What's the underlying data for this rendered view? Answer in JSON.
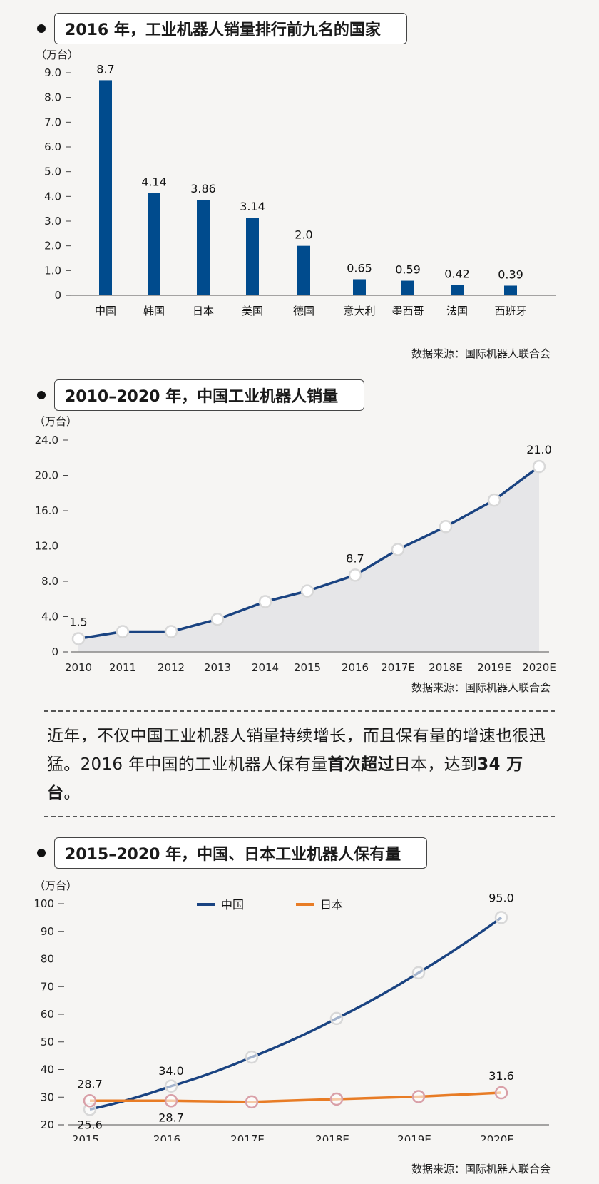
{
  "colors": {
    "bar": "#004b8d",
    "china": "#1a4381",
    "japan": "#e87c25",
    "area": "#e6e6e8",
    "marker": "#d8d8d8",
    "marker_japan": "#d9a0a8"
  },
  "chart_data": [
    {
      "type": "bar",
      "title": "2016 年，工业机器人销量排行前九名的国家",
      "ylabel": "（万台）",
      "ylim": [
        0,
        9.0
      ],
      "yticks": [
        "0",
        "1.0",
        "2.0",
        "3.0",
        "4.0",
        "5.0",
        "6.0",
        "7.0",
        "8.0",
        "9.0"
      ],
      "categories": [
        "中国",
        "韩国",
        "日本",
        "美国",
        "德国",
        "意大利",
        "墨西哥",
        "法国",
        "西班牙"
      ],
      "values": [
        8.7,
        4.14,
        3.86,
        3.14,
        2.0,
        0.65,
        0.59,
        0.42,
        0.39
      ],
      "value_labels": [
        "8.7",
        "4.14",
        "3.86",
        "3.14",
        "2.0",
        "0.65",
        "0.59",
        "0.42",
        "0.39"
      ],
      "source": "数据来源：国际机器人联合会"
    },
    {
      "type": "area",
      "title": "2010–2020 年，中国工业机器人销量",
      "ylabel": "（万台）",
      "ylim": [
        0,
        24.0
      ],
      "yticks": [
        "0",
        "4.0",
        "8.0",
        "12.0",
        "16.0",
        "20.0",
        "24.0"
      ],
      "categories": [
        "2010",
        "2011",
        "2012",
        "2013",
        "2014",
        "2015",
        "2016",
        "2017E",
        "2018E",
        "2019E",
        "2020E"
      ],
      "values": [
        1.5,
        2.3,
        2.3,
        3.7,
        5.7,
        6.9,
        8.7,
        11.6,
        14.2,
        17.2,
        21.0
      ],
      "annotations": [
        {
          "index": 0,
          "label": "1.5"
        },
        {
          "index": 6,
          "label": "8.7"
        },
        {
          "index": 10,
          "label": "21.0"
        }
      ],
      "source": "数据来源：国际机器人联合会"
    },
    {
      "type": "line",
      "title": "2015–2020 年，中国、日本工业机器人保有量",
      "ylabel": "（万台）",
      "ylim": [
        20,
        100
      ],
      "yticks": [
        "20",
        "30",
        "40",
        "50",
        "60",
        "70",
        "80",
        "90",
        "100"
      ],
      "categories": [
        "2015",
        "2016",
        "2017E",
        "2018E",
        "2019E",
        "2020E"
      ],
      "series": [
        {
          "name": "中国",
          "values": [
            25.6,
            34.0,
            44.5,
            58.5,
            75.0,
            95.0
          ]
        },
        {
          "name": "日本",
          "values": [
            28.7,
            28.7,
            28.3,
            29.3,
            30.2,
            31.6
          ]
        }
      ],
      "annotations": [
        {
          "series": 0,
          "index": 0,
          "label": "25.6"
        },
        {
          "series": 0,
          "index": 1,
          "label": "34.0"
        },
        {
          "series": 0,
          "index": 5,
          "label": "95.0"
        },
        {
          "series": 1,
          "index": 0,
          "label": "28.7"
        },
        {
          "series": 1,
          "index": 1,
          "label": "28.7"
        },
        {
          "series": 1,
          "index": 5,
          "label": "31.6"
        }
      ],
      "source": "数据来源：国际机器人联合会"
    }
  ],
  "paragraph": {
    "part1": "近年，不仅中国工业机器人销量持续增长，而且保有量的增速也很迅猛。2016 年中国的工业机器人保有量",
    "bold1": "首次超过",
    "part2": "日本，达到",
    "bold2": "34 万台",
    "part3": "。"
  }
}
